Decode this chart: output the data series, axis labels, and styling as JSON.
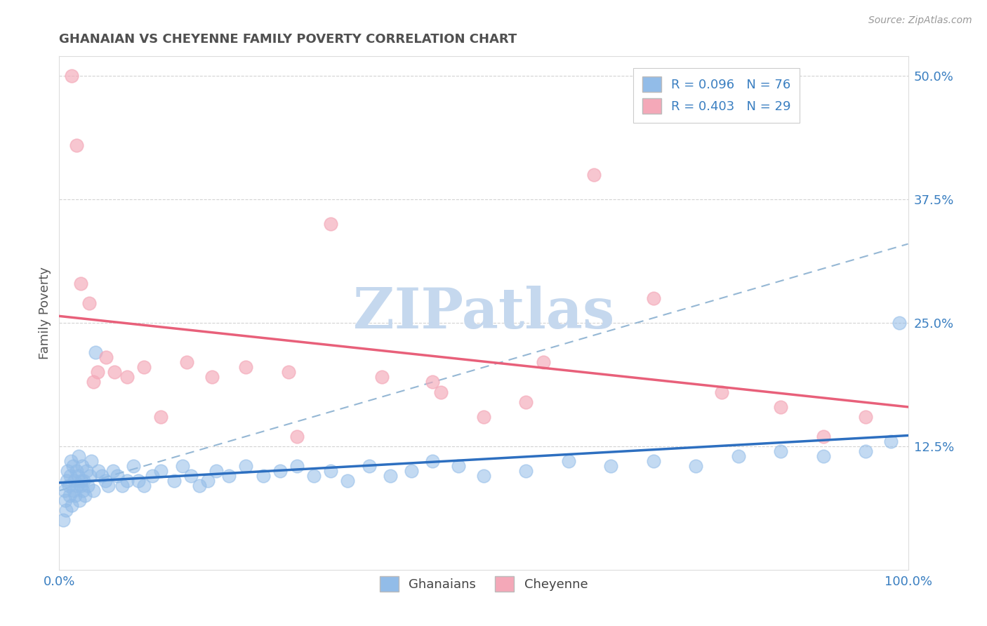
{
  "title": "GHANAIAN VS CHEYENNE FAMILY POVERTY CORRELATION CHART",
  "source": "Source: ZipAtlas.com",
  "ylabel": "Family Poverty",
  "xlim": [
    0,
    100
  ],
  "ylim": [
    0,
    52
  ],
  "ytick_vals": [
    12.5,
    25.0,
    37.5,
    50.0
  ],
  "ytick_labels": [
    "12.5%",
    "25.0%",
    "37.5%",
    "50.0%"
  ],
  "xtick_vals": [
    0,
    100
  ],
  "xtick_labels": [
    "0.0%",
    "100.0%"
  ],
  "legend_r1": "R = 0.096   N = 76",
  "legend_r2": "R = 0.403   N = 29",
  "ghanaian_color": "#92bce8",
  "cheyenne_color": "#f4a8b8",
  "ghanaian_line_color": "#2d6fc0",
  "cheyenne_line_color": "#e8607a",
  "dashed_line_color": "#8ab0d0",
  "watermark": "ZIPatlas",
  "watermark_color": "#c5d8ee",
  "background_color": "#ffffff",
  "title_color": "#505050",
  "title_fontsize": 13,
  "axis_label_color": "#3a7fc1",
  "ghanaian_x": [
    0.5,
    0.6,
    0.7,
    0.8,
    0.9,
    1.0,
    1.1,
    1.2,
    1.3,
    1.4,
    1.5,
    1.6,
    1.7,
    1.8,
    1.9,
    2.0,
    2.1,
    2.2,
    2.3,
    2.4,
    2.5,
    2.6,
    2.7,
    2.8,
    2.9,
    3.0,
    3.2,
    3.4,
    3.6,
    3.8,
    4.0,
    4.3,
    4.6,
    5.0,
    5.4,
    5.8,
    6.3,
    6.8,
    7.4,
    8.0,
    8.7,
    9.3,
    10.0,
    11.0,
    12.0,
    13.5,
    14.5,
    15.5,
    16.5,
    17.5,
    18.5,
    20.0,
    22.0,
    24.0,
    26.0,
    28.0,
    30.0,
    32.0,
    34.0,
    36.5,
    39.0,
    41.5,
    44.0,
    47.0,
    50.0,
    55.0,
    60.0,
    65.0,
    70.0,
    75.0,
    80.0,
    85.0,
    90.0,
    95.0,
    98.0,
    99.0
  ],
  "ghanaian_y": [
    5.0,
    8.0,
    7.0,
    6.0,
    9.0,
    10.0,
    8.5,
    7.5,
    9.5,
    11.0,
    6.5,
    10.5,
    8.0,
    9.0,
    7.5,
    10.0,
    8.5,
    9.5,
    11.5,
    7.0,
    8.5,
    9.0,
    10.5,
    8.0,
    9.0,
    7.5,
    10.0,
    8.5,
    9.5,
    11.0,
    8.0,
    22.0,
    10.0,
    9.5,
    9.0,
    8.5,
    10.0,
    9.5,
    8.5,
    9.0,
    10.5,
    9.0,
    8.5,
    9.5,
    10.0,
    9.0,
    10.5,
    9.5,
    8.5,
    9.0,
    10.0,
    9.5,
    10.5,
    9.5,
    10.0,
    10.5,
    9.5,
    10.0,
    9.0,
    10.5,
    9.5,
    10.0,
    11.0,
    10.5,
    9.5,
    10.0,
    11.0,
    10.5,
    11.0,
    10.5,
    11.5,
    12.0,
    11.5,
    12.0,
    13.0,
    25.0
  ],
  "cheyenne_x": [
    1.5,
    2.0,
    2.5,
    3.5,
    4.5,
    5.5,
    6.5,
    8.0,
    10.0,
    12.0,
    15.0,
    18.0,
    22.0,
    27.0,
    32.0,
    38.0,
    44.0,
    50.0,
    57.0,
    63.0,
    70.0,
    78.0,
    85.0,
    90.0,
    95.0,
    55.0,
    45.0,
    28.0,
    4.0
  ],
  "cheyenne_y": [
    50.0,
    43.0,
    29.0,
    27.0,
    20.0,
    21.5,
    20.0,
    19.5,
    20.5,
    15.5,
    21.0,
    19.5,
    20.5,
    20.0,
    35.0,
    19.5,
    19.0,
    15.5,
    21.0,
    40.0,
    27.5,
    18.0,
    16.5,
    13.5,
    15.5,
    17.0,
    18.0,
    13.5,
    19.0
  ]
}
